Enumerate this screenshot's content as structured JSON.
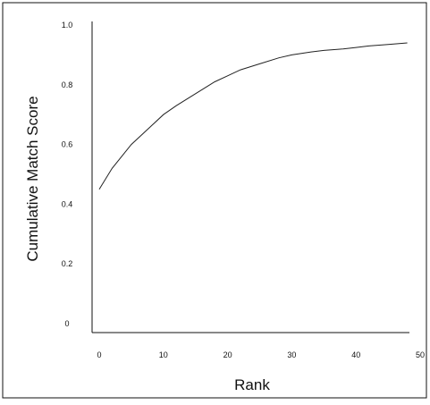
{
  "chart_data": {
    "type": "line",
    "title": "",
    "xlabel": "Rank",
    "ylabel": "Cumulative Match Score",
    "xlim": [
      0,
      50
    ],
    "ylim": [
      0,
      1.0
    ],
    "x_ticks": [
      "0",
      "10",
      "20",
      "30",
      "40",
      "50"
    ],
    "y_ticks": [
      "0",
      "0.2",
      "0.4",
      "0.6",
      "0.8",
      "1.0"
    ],
    "grid": false,
    "legend": "none",
    "series": [
      {
        "x": [
          0,
          2,
          5,
          8,
          10,
          12,
          15,
          18,
          20,
          22,
          25,
          28,
          30,
          33,
          35,
          38,
          40,
          42,
          45,
          48
        ],
        "values": [
          0.45,
          0.52,
          0.6,
          0.66,
          0.7,
          0.73,
          0.77,
          0.81,
          0.83,
          0.85,
          0.87,
          0.89,
          0.9,
          0.91,
          0.915,
          0.92,
          0.925,
          0.93,
          0.935,
          0.94
        ]
      }
    ]
  },
  "colors": {
    "line": "#222222",
    "frame": "#111111",
    "background": "#ffffff"
  }
}
